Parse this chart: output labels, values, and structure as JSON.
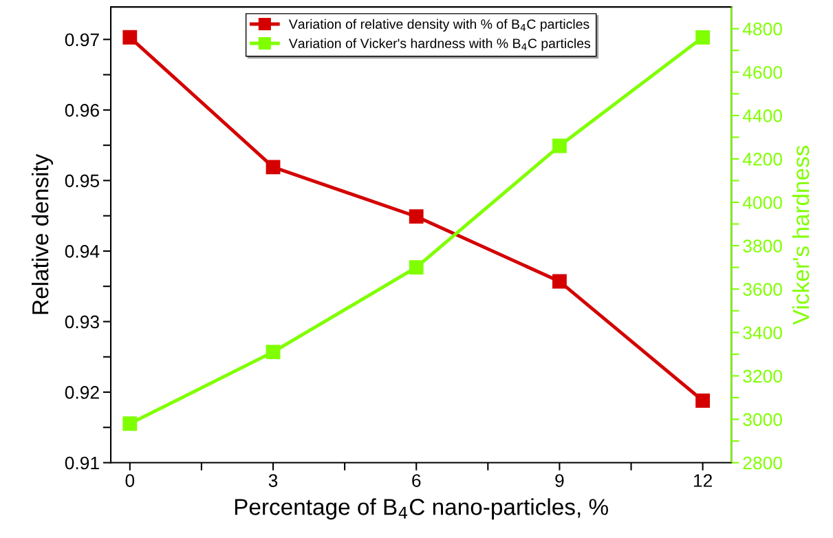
{
  "chart_data": {
    "type": "line",
    "xlabel": "Percentage of B$_{4}$C nano-particles, %",
    "ylabel": "Relative density",
    "y2label": "Vicker's hardness",
    "x": [
      0,
      3,
      6,
      9,
      12
    ],
    "series": [
      {
        "name": "Variation of relative density with % of B$_{4}$C particles",
        "color": "#d40000",
        "values": [
          0.9703,
          0.9519,
          0.9449,
          0.9357,
          0.9188
        ]
      },
      {
        "name": "Variation of Vicker's hardness with % B$_{4}$C particles",
        "color": "#80ff00",
        "axis": "y2",
        "values": [
          2980,
          3310,
          3700,
          4260,
          4760
        ]
      }
    ],
    "xlim": [
      -0.4,
      12.6
    ],
    "xticks": [
      0,
      {
        "value": 1.5,
        "label": null
      },
      3,
      {
        "value": 4.5,
        "label": null
      },
      6,
      {
        "value": 7.5,
        "label": null
      },
      9,
      {
        "value": 10.5,
        "label": null
      },
      12
    ],
    "ylim": [
      0.91,
      0.9746
    ],
    "yticks": [
      0.91,
      {
        "value": 0.915,
        "label": null
      },
      0.92,
      {
        "value": 0.925,
        "label": null
      },
      0.93,
      {
        "value": 0.935,
        "label": null
      },
      0.94,
      {
        "value": 0.945,
        "label": null
      },
      0.95,
      {
        "value": 0.955,
        "label": null
      },
      0.96,
      {
        "value": 0.965,
        "label": null
      },
      0.97
    ],
    "y2lim": [
      2800,
      4900
    ],
    "y2ticks": [
      2800,
      {
        "value": 2900,
        "label": null
      },
      3000,
      {
        "value": 3100,
        "label": null
      },
      3200,
      {
        "value": 3300,
        "label": null
      },
      3400,
      {
        "value": 3500,
        "label": null
      },
      3600,
      {
        "value": 3700,
        "label": null
      },
      3800,
      {
        "value": 3900,
        "label": null
      },
      4000,
      {
        "value": 4100,
        "label": null
      },
      4200,
      {
        "value": 4300,
        "label": null
      },
      4400,
      {
        "value": 4500,
        "label": null
      },
      4600,
      {
        "value": 4700,
        "label": null
      },
      4800
    ],
    "marker": "square",
    "line_style": "solid",
    "legend": "top",
    "grid": false
  }
}
